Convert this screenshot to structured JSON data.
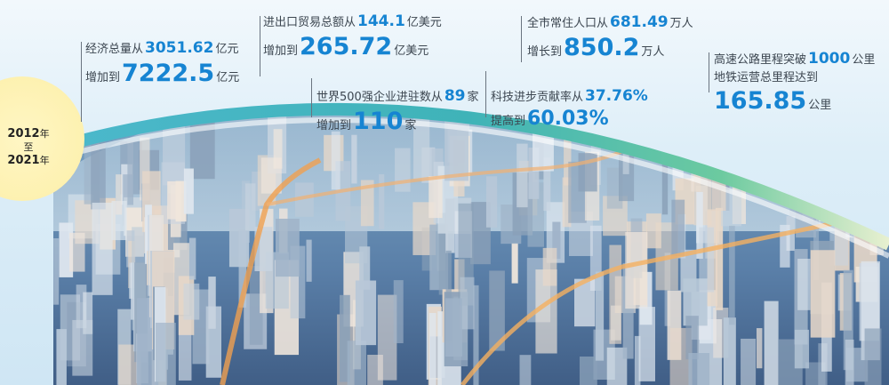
{
  "period": {
    "start": "2012",
    "start_unit": "年",
    "to": "至",
    "end": "2021",
    "end_unit": "年"
  },
  "stats": [
    {
      "id": "gdp",
      "line1_label": "经济总量从",
      "line1_value": "3051.62",
      "line1_unit": "亿元",
      "line2_label": "增加到",
      "line2_value": "7222.5",
      "line2_unit": "亿元"
    },
    {
      "id": "trade",
      "line1_label": "进出口贸易总额从",
      "line1_value": "144.1",
      "line1_unit": "亿美元",
      "line2_label": "增加到",
      "line2_value": "265.72",
      "line2_unit": "亿美元"
    },
    {
      "id": "fortune500",
      "line1_label": "世界500强企业进驻数从",
      "line1_value": "89",
      "line1_unit": "家",
      "line2_label": "增加到",
      "line2_value": "110",
      "line2_unit": "家"
    },
    {
      "id": "tech",
      "line1_label": "科技进步贡献率从",
      "line1_value": "37.76%",
      "line1_unit": "",
      "line2_label": "提高到",
      "line2_value": "60.03%",
      "line2_unit": ""
    },
    {
      "id": "population",
      "line1_label": "全市常住人口从",
      "line1_value": "681.49",
      "line1_unit": "万人",
      "line2_label": "增长到",
      "line2_value": "850.2",
      "line2_unit": "万人"
    },
    {
      "id": "transport",
      "line1_label": "高速公路里程突破",
      "line1_value": "1000",
      "line1_unit": "公里",
      "line2_label": "地铁运营总里程达到",
      "line3_value": "165.85",
      "line3_unit": "公里"
    }
  ],
  "colors": {
    "number": "#1684d2",
    "arc_start": "#3fb6c8",
    "arc_end": "#7cd0a0",
    "circle": "#fcefa8"
  }
}
